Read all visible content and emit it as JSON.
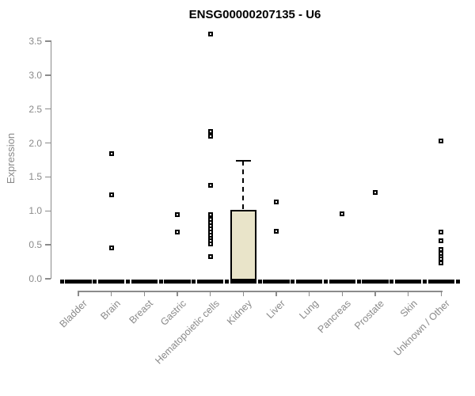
{
  "chart_data": {
    "type": "box",
    "title": "ENSG00000207135 - U6",
    "ylabel": "Expression",
    "xlabel": "",
    "ylim": [
      0,
      3.6
    ],
    "yticks": [
      "0.0",
      "0.5",
      "1.0",
      "1.5",
      "2.0",
      "2.5",
      "3.0",
      "3.5"
    ],
    "grid": false,
    "legend": "none",
    "colors": {
      "box_fill": "#e9e4c9",
      "box_border": "#000000",
      "marker": "#000000",
      "axis": "#8b8b8b",
      "text": "#8a8a8a",
      "title": "#000000",
      "background": "#ffffff"
    },
    "categories": [
      "Bladder",
      "Brain",
      "Breast",
      "Gastric",
      "Hematopoietic cells",
      "Kidney",
      "Liver",
      "Lung",
      "Pancreas",
      "Prostate",
      "Skin",
      "Unknown / Other"
    ],
    "series": [
      {
        "category": "Bladder",
        "box": {
          "q1": 0,
          "median": 0,
          "q3": 0,
          "whisker_low": 0,
          "whisker_high": 0
        },
        "outliers": []
      },
      {
        "category": "Brain",
        "box": {
          "q1": 0,
          "median": 0,
          "q3": 0,
          "whisker_low": 0,
          "whisker_high": 0
        },
        "outliers": [
          1.84,
          1.24,
          0.46
        ]
      },
      {
        "category": "Breast",
        "box": {
          "q1": 0,
          "median": 0,
          "q3": 0,
          "whisker_low": 0,
          "whisker_high": 0
        },
        "outliers": []
      },
      {
        "category": "Gastric",
        "box": {
          "q1": 0,
          "median": 0,
          "q3": 0,
          "whisker_low": 0,
          "whisker_high": 0
        },
        "outliers": [
          0.94,
          0.69
        ]
      },
      {
        "category": "Hematopoietic cells",
        "box": {
          "q1": 0,
          "median": 0,
          "q3": 0,
          "whisker_low": 0,
          "whisker_high": 0
        },
        "outliers": [
          3.6,
          2.17,
          2.1,
          1.38,
          0.95,
          0.88,
          0.83,
          0.78,
          0.74,
          0.69,
          0.64,
          0.6,
          0.56,
          0.51,
          0.33
        ]
      },
      {
        "category": "Kidney",
        "box": {
          "q1": 0,
          "median": 0,
          "q3": 1.02,
          "whisker_low": 0,
          "whisker_high": 1.74
        },
        "outliers": []
      },
      {
        "category": "Liver",
        "box": {
          "q1": 0,
          "median": 0,
          "q3": 0,
          "whisker_low": 0,
          "whisker_high": 0
        },
        "outliers": [
          1.13,
          0.7
        ]
      },
      {
        "category": "Lung",
        "box": {
          "q1": 0,
          "median": 0,
          "q3": 0,
          "whisker_low": 0,
          "whisker_high": 0
        },
        "outliers": []
      },
      {
        "category": "Pancreas",
        "box": {
          "q1": 0,
          "median": 0,
          "q3": 0,
          "whisker_low": 0,
          "whisker_high": 0
        },
        "outliers": [
          0.96
        ]
      },
      {
        "category": "Prostate",
        "box": {
          "q1": 0,
          "median": 0,
          "q3": 0,
          "whisker_low": 0,
          "whisker_high": 0
        },
        "outliers": [
          1.27
        ]
      },
      {
        "category": "Skin",
        "box": {
          "q1": 0,
          "median": 0,
          "q3": 0,
          "whisker_low": 0,
          "whisker_high": 0
        },
        "outliers": []
      },
      {
        "category": "Unknown / Other",
        "box": {
          "q1": 0,
          "median": 0,
          "q3": 0,
          "whisker_low": 0,
          "whisker_high": 0
        },
        "outliers": [
          2.03,
          0.69,
          0.56,
          0.43,
          0.37,
          0.33,
          0.29,
          0.23
        ]
      }
    ],
    "zero_line_markers": true
  }
}
